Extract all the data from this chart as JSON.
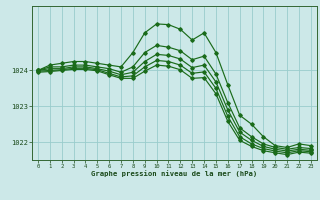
{
  "xlabel": "Graphe pression niveau de la mer (hPa)",
  "background_color": "#cce8e8",
  "grid_color": "#99cccc",
  "line_color": "#1a6b1a",
  "xlim": [
    -0.5,
    23.5
  ],
  "ylim": [
    1021.5,
    1025.8
  ],
  "yticks": [
    1022,
    1023,
    1024
  ],
  "xticks": [
    0,
    1,
    2,
    3,
    4,
    5,
    6,
    7,
    8,
    9,
    10,
    11,
    12,
    13,
    14,
    15,
    16,
    17,
    18,
    19,
    20,
    21,
    22,
    23
  ],
  "series": [
    [
      1024.0,
      1024.15,
      1024.2,
      1024.25,
      1024.25,
      1024.2,
      1024.15,
      1024.1,
      1024.5,
      1025.05,
      1025.3,
      1025.28,
      1025.15,
      1024.85,
      1025.05,
      1024.5,
      1023.6,
      1022.75,
      1022.5,
      1022.15,
      1021.9,
      1021.85,
      1021.95,
      1021.9
    ],
    [
      1024.0,
      1024.1,
      1024.1,
      1024.15,
      1024.15,
      1024.1,
      1024.05,
      1023.95,
      1024.1,
      1024.5,
      1024.7,
      1024.65,
      1024.55,
      1024.3,
      1024.4,
      1023.9,
      1023.1,
      1022.4,
      1022.15,
      1021.95,
      1021.85,
      1021.8,
      1021.85,
      1021.82
    ],
    [
      1024.0,
      1024.05,
      1024.05,
      1024.1,
      1024.1,
      1024.05,
      1023.98,
      1023.88,
      1023.95,
      1024.25,
      1024.45,
      1024.42,
      1024.32,
      1024.08,
      1024.15,
      1023.68,
      1022.9,
      1022.28,
      1022.05,
      1021.88,
      1021.8,
      1021.75,
      1021.8,
      1021.77
    ],
    [
      1023.98,
      1024.0,
      1024.02,
      1024.06,
      1024.06,
      1024.02,
      1023.92,
      1023.82,
      1023.85,
      1024.1,
      1024.28,
      1024.25,
      1024.15,
      1023.92,
      1023.96,
      1023.5,
      1022.72,
      1022.15,
      1021.95,
      1021.82,
      1021.75,
      1021.7,
      1021.76,
      1021.73
    ],
    [
      1023.95,
      1023.97,
      1024.0,
      1024.03,
      1024.03,
      1023.99,
      1023.88,
      1023.78,
      1023.78,
      1023.98,
      1024.15,
      1024.12,
      1024.02,
      1023.78,
      1023.8,
      1023.35,
      1022.58,
      1022.05,
      1021.88,
      1021.76,
      1021.7,
      1021.65,
      1021.72,
      1021.69
    ]
  ]
}
